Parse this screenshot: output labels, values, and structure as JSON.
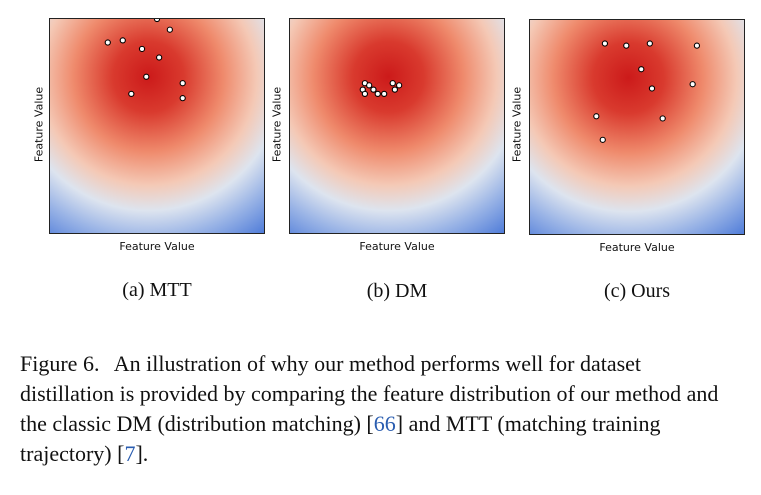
{
  "panels": [
    {
      "id": "mtt",
      "xlabel": "Feature Value",
      "ylabel": "Feature Value",
      "subcaption": "(a) MTT",
      "points": [
        [
          0.5,
          0.0
        ],
        [
          0.56,
          0.05
        ],
        [
          0.27,
          0.11
        ],
        [
          0.34,
          0.1
        ],
        [
          0.43,
          0.14
        ],
        [
          0.51,
          0.18
        ],
        [
          0.45,
          0.27
        ],
        [
          0.62,
          0.3
        ],
        [
          0.38,
          0.35
        ],
        [
          0.62,
          0.37
        ]
      ]
    },
    {
      "id": "dm",
      "xlabel": "Feature Value",
      "ylabel": "Feature Value",
      "subcaption": "(b) DM",
      "points": [
        [
          0.35,
          0.3
        ],
        [
          0.37,
          0.31
        ],
        [
          0.34,
          0.33
        ],
        [
          0.35,
          0.35
        ],
        [
          0.39,
          0.33
        ],
        [
          0.41,
          0.35
        ],
        [
          0.44,
          0.35
        ],
        [
          0.49,
          0.33
        ],
        [
          0.51,
          0.31
        ],
        [
          0.48,
          0.3
        ]
      ]
    },
    {
      "id": "ours",
      "xlabel": "Feature Value",
      "ylabel": "Feature Value",
      "subcaption": "(c) Ours",
      "points": [
        [
          0.35,
          0.11
        ],
        [
          0.45,
          0.12
        ],
        [
          0.56,
          0.11
        ],
        [
          0.78,
          0.12
        ],
        [
          0.52,
          0.23
        ],
        [
          0.57,
          0.32
        ],
        [
          0.76,
          0.3
        ],
        [
          0.31,
          0.45
        ],
        [
          0.62,
          0.46
        ],
        [
          0.34,
          0.56
        ]
      ]
    }
  ],
  "caption": {
    "label": "Figure 6.",
    "text_before": "An illustration of why our method performs well for dataset distillation is provided by comparing the feature distribution of our method and the classic DM (distribution matching) [",
    "cite1": "66",
    "text_middle": "] and MTT (matching training trajectory) [",
    "cite2": "7",
    "text_after": "]."
  },
  "colors": {
    "heat_center": "#cc1a1a",
    "heat_mid": "#f0a080",
    "heat_edge": "#4a78d8",
    "point_fill": "#ffffff",
    "point_stroke": "#000000",
    "citation": "#2a5db0"
  }
}
